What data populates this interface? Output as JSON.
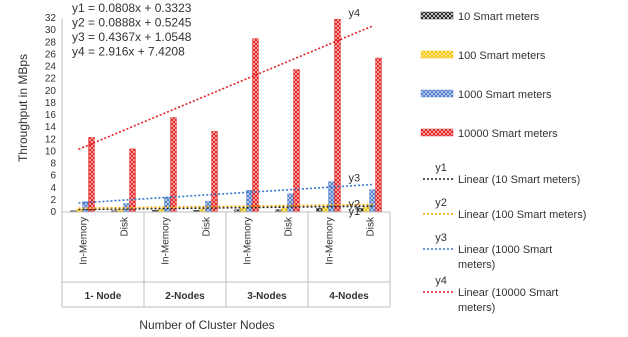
{
  "chart_data": {
    "type": "bar",
    "xlabel": "Number of Cluster Nodes",
    "ylabel": "Throughput in MBps",
    "ylim": [
      0,
      32
    ],
    "yticks": [
      0,
      2,
      4,
      6,
      8,
      10,
      12,
      14,
      16,
      18,
      20,
      22,
      24,
      26,
      28,
      30,
      32
    ],
    "groups": [
      "1- Node",
      "2-Nodes",
      "3-Nodes",
      "4-Nodes"
    ],
    "categories": [
      "In-Memory",
      "Disk",
      "In-Memory",
      "Disk",
      "In-Memory",
      "Disk",
      "In-Memory",
      "Disk"
    ],
    "series": [
      {
        "name": "10 Smart meters",
        "color": "#222222",
        "values": [
          0.2,
          0.2,
          0.3,
          0.3,
          0.4,
          0.4,
          0.6,
          0.6
        ]
      },
      {
        "name": "100 Smart meters",
        "color": "#f2c100",
        "values": [
          0.4,
          0.4,
          0.5,
          0.5,
          0.6,
          0.6,
          0.8,
          0.8
        ]
      },
      {
        "name": "1000 Smart meters",
        "color": "#4f7dc9",
        "values": [
          1.7,
          1.4,
          2.4,
          1.8,
          3.6,
          3.0,
          5.0,
          3.7
        ]
      },
      {
        "name": "10000 Smart meters",
        "color": "#e02020",
        "values": [
          12.3,
          10.4,
          15.6,
          13.3,
          28.6,
          23.5,
          31.8,
          25.4
        ]
      }
    ],
    "trendlines": [
      {
        "label": "y1",
        "name": "Linear (10 Smart meters)",
        "equation": "y1 = 0.0808x + 0.3323",
        "slope": 0.0808,
        "intercept": 0.3323,
        "color": "#222222"
      },
      {
        "label": "y2",
        "name": "Linear (100 Smart meters)",
        "equation": "y2 = 0.0888x + 0.5245",
        "slope": 0.0888,
        "intercept": 0.5245,
        "color": "#f2a100"
      },
      {
        "label": "y3",
        "name": "Linear (1000 Smart\nmeters)",
        "equation": "y3 = 0.4367x + 1.0548",
        "slope": 0.4367,
        "intercept": 1.0548,
        "color": "#3a78c9"
      },
      {
        "label": "y4",
        "name": "Linear (10000 Smart\nmeters)",
        "equation": "y4 = 2.916x + 7.4208",
        "slope": 2.916,
        "intercept": 7.4208,
        "color": "#e02020"
      }
    ],
    "grid": false,
    "legend_position": "right"
  }
}
